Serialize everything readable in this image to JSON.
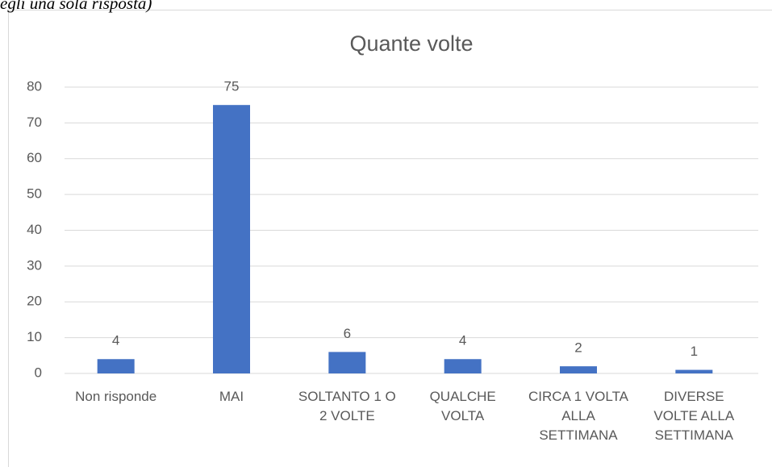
{
  "chart_data": {
    "type": "bar",
    "annotation": "egli una sola risposta)",
    "title": "Quante volte",
    "categories": [
      "Non risponde",
      "MAI",
      "SOLTANTO 1 O 2 VOLTE",
      "QUALCHE VOLTA",
      "CIRCA 1 VOLTA ALLA SETTIMANA",
      "DIVERSE VOLTE ALLA SETTIMANA"
    ],
    "values": [
      4,
      75,
      6,
      4,
      2,
      1
    ],
    "color": "#4472c4",
    "ylim": [
      0,
      80
    ],
    "yticks": [
      0,
      10,
      20,
      30,
      40,
      50,
      60,
      70,
      80
    ],
    "grid": true
  }
}
